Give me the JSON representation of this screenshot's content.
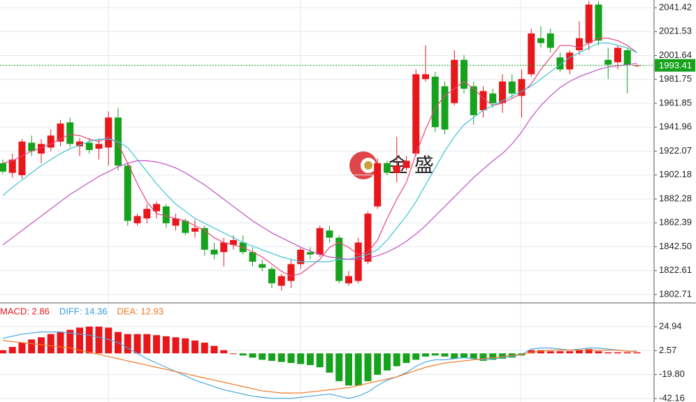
{
  "chart_data": [
    {
      "type": "candlestick",
      "watermark": "金 盛",
      "up_color": "#e8171b",
      "down_color": "#16a21c",
      "open": [
        1912,
        1904,
        1902,
        1929,
        1920,
        1925,
        1930,
        1946,
        1926,
        1929,
        1924,
        1925,
        1950,
        1910,
        1862,
        1866,
        1872,
        1876,
        1860,
        1864,
        1855,
        1858,
        1840,
        1838,
        1844,
        1846,
        1838,
        1828,
        1824,
        1810,
        1814,
        1828,
        1838,
        1836,
        1856,
        1850,
        1812,
        1814,
        1830,
        1876,
        1912,
        1904,
        1908,
        1920,
        1982,
        1984,
        1976,
        1962,
        1998,
        1976,
        1956,
        1970,
        1962,
        1980,
        1968,
        1986,
        2016,
        2020,
        2000,
        1990,
        2006,
        2012,
        2044,
        1998,
        1996,
        2006,
        1993
      ],
      "high": [
        1915,
        1920,
        1932,
        1935,
        1932,
        1940,
        1948,
        1950,
        1933,
        1933,
        1932,
        1955,
        1958,
        1912,
        1870,
        1878,
        1880,
        1878,
        1870,
        1866,
        1865,
        1860,
        1846,
        1850,
        1852,
        1852,
        1842,
        1832,
        1826,
        1820,
        1832,
        1842,
        1842,
        1860,
        1860,
        1852,
        1822,
        1850,
        1872,
        1916,
        1914,
        1934,
        1918,
        1990,
        2010,
        1988,
        1980,
        2006,
        2002,
        1980,
        1976,
        1974,
        1986,
        1986,
        1990,
        2024,
        2026,
        2024,
        2004,
        2006,
        2030,
        2047,
        2047,
        2008,
        2010,
        2008,
        1994
      ],
      "low": [
        1903,
        1900,
        1899,
        1918,
        1912,
        1922,
        1926,
        1925,
        1918,
        1920,
        1915,
        1910,
        1906,
        1860,
        1860,
        1862,
        1866,
        1858,
        1856,
        1852,
        1850,
        1835,
        1832,
        1826,
        1840,
        1836,
        1826,
        1822,
        1808,
        1806,
        1808,
        1824,
        1832,
        1834,
        1846,
        1812,
        1810,
        1812,
        1828,
        1874,
        1902,
        1896,
        1906,
        1918,
        1980,
        1938,
        1936,
        1960,
        1970,
        1944,
        1950,
        1958,
        1954,
        1966,
        1950,
        1984,
        2008,
        2004,
        1988,
        1986,
        2002,
        2006,
        2010,
        1982,
        1990,
        1970,
        1992
      ],
      "close": [
        1905,
        1915,
        1930,
        1922,
        1928,
        1935,
        1945,
        1928,
        1930,
        1923,
        1928,
        1950,
        1910,
        1864,
        1868,
        1874,
        1878,
        1862,
        1866,
        1854,
        1858,
        1840,
        1836,
        1846,
        1848,
        1838,
        1830,
        1825,
        1812,
        1818,
        1828,
        1840,
        1836,
        1858,
        1850,
        1814,
        1818,
        1846,
        1870,
        1912,
        1904,
        1910,
        1914,
        1986,
        1986,
        1942,
        1940,
        1998,
        1974,
        1952,
        1972,
        1962,
        1980,
        1970,
        1982,
        2020,
        2012,
        2008,
        1990,
        2004,
        2016,
        2044,
        2014,
        1994,
        2008,
        1994,
        1993.41
      ],
      "series": [
        {
          "color": "#e8457a",
          "values": [
            1912,
            1914,
            1918,
            1922,
            1925,
            1928,
            1932,
            1936,
            1935,
            1932,
            1930,
            1934,
            1928,
            1912,
            1895,
            1880,
            1870,
            1868,
            1866,
            1864,
            1860,
            1856,
            1850,
            1846,
            1844,
            1842,
            1838,
            1834,
            1828,
            1822,
            1818,
            1820,
            1826,
            1832,
            1842,
            1846,
            1842,
            1836,
            1838,
            1848,
            1866,
            1882,
            1896,
            1920,
            1940,
            1958,
            1968,
            1974,
            1980,
            1974,
            1966,
            1960,
            1962,
            1966,
            1970,
            1978,
            1990,
            2000,
            2010,
            2010,
            2008,
            2012,
            2016,
            2016,
            2014,
            2010,
            2004
          ]
        },
        {
          "color": "#3fc3d6",
          "values": [
            1885,
            1892,
            1898,
            1904,
            1910,
            1915,
            1920,
            1924,
            1927,
            1930,
            1932,
            1932,
            1930,
            1925,
            1915,
            1905,
            1895,
            1886,
            1878,
            1872,
            1866,
            1862,
            1858,
            1854,
            1850,
            1846,
            1843,
            1840,
            1837,
            1834,
            1832,
            1830,
            1830,
            1830,
            1830,
            1832,
            1832,
            1834,
            1836,
            1840,
            1848,
            1858,
            1868,
            1880,
            1894,
            1908,
            1922,
            1934,
            1944,
            1950,
            1956,
            1960,
            1964,
            1968,
            1972,
            1976,
            1982,
            1988,
            1994,
            2000,
            2004,
            2008,
            2012,
            2012,
            2010,
            2008,
            2004
          ]
        },
        {
          "color": "#c04fc4",
          "values": [
            1844,
            1850,
            1856,
            1862,
            1868,
            1874,
            1880,
            1886,
            1891,
            1896,
            1901,
            1905,
            1909,
            1912,
            1914,
            1914,
            1913,
            1911,
            1908,
            1904,
            1899,
            1894,
            1888,
            1882,
            1876,
            1870,
            1864,
            1859,
            1854,
            1850,
            1846,
            1842,
            1839,
            1836,
            1834,
            1833,
            1832,
            1832,
            1833,
            1835,
            1838,
            1842,
            1847,
            1853,
            1860,
            1868,
            1876,
            1884,
            1892,
            1900,
            1907,
            1914,
            1920,
            1928,
            1938,
            1950,
            1960,
            1968,
            1975,
            1980,
            1984,
            1987,
            1990,
            1992,
            1993,
            1994,
            1995
          ]
        }
      ],
      "last_price": 1993.41,
      "last_price_color": "#16a21c",
      "ylim": [
        1796.9,
        2047.8
      ],
      "yticks": [
        2041.42,
        2021.53,
        2001.64,
        1981.75,
        1961.85,
        1941.96,
        1922.07,
        1902.18,
        1882.28,
        1862.39,
        {
          "value": 1842.5,
          "label": "1842.50"
        },
        1822.61,
        1802.71
      ],
      "grid": true
    },
    {
      "type": "macd",
      "legend": [
        {
          "text": "MACD: 2.86",
          "color": "#e8171b"
        },
        {
          "text": "DIFF: 14.36",
          "color": "#3a9be0"
        },
        {
          "text": "DEA: 12.93",
          "color": "#f07822"
        }
      ],
      "up_color": "#e8171b",
      "down_color": "#16a21c",
      "values": [
        3,
        6,
        10,
        13,
        15,
        18,
        20,
        22,
        24,
        25,
        25,
        24,
        20,
        18,
        18,
        18,
        17,
        16,
        15,
        14,
        12,
        10,
        7,
        3,
        0,
        -2,
        -4,
        -6,
        -7,
        -8,
        -9,
        -10,
        -11,
        -13,
        -18,
        -26,
        -30,
        -30,
        -26,
        -20,
        -16,
        -12,
        -9,
        -6,
        -3,
        -2,
        -3,
        -5,
        -4,
        -5,
        -7,
        -6,
        -5,
        -4,
        -2,
        3,
        3,
        2,
        2,
        2,
        3,
        4,
        2,
        1,
        1,
        1,
        1
      ],
      "series": [
        {
          "color": "#4aa8e0",
          "values": [
            14,
            16,
            18,
            19,
            20,
            20,
            20,
            19,
            18,
            17,
            15,
            13,
            10,
            5,
            0,
            -5,
            -9,
            -13,
            -17,
            -21,
            -25,
            -28,
            -31,
            -34,
            -36,
            -38,
            -40,
            -41,
            -42,
            -42,
            -42,
            -41,
            -40,
            -39,
            -38,
            -40,
            -42,
            -40,
            -36,
            -30,
            -25,
            -22,
            -18,
            -12,
            -8,
            -6,
            -6,
            -5,
            -4,
            -5,
            -6,
            -5,
            -4,
            -3,
            -1,
            4,
            5,
            5,
            4,
            3,
            4,
            5,
            5,
            4,
            3,
            2,
            2
          ]
        },
        {
          "color": "#f07822",
          "values": [
            12,
            11,
            10,
            9,
            8,
            7,
            6,
            5,
            3,
            1,
            -1,
            -3,
            -5,
            -7,
            -9,
            -11,
            -13,
            -15,
            -17,
            -19,
            -21,
            -23,
            -25,
            -27,
            -29,
            -31,
            -33,
            -35,
            -36,
            -37,
            -37,
            -37,
            -36,
            -35,
            -34,
            -33,
            -32,
            -30,
            -28,
            -26,
            -24,
            -22,
            -19,
            -16,
            -13,
            -11,
            -9,
            -8,
            -7,
            -6,
            -5,
            -4,
            -3,
            -2,
            -1,
            1,
            2,
            3,
            3,
            3,
            3,
            3,
            3,
            3,
            3,
            2,
            2
          ]
        }
      ],
      "ylim": [
        -45.4,
        45.8
      ],
      "yticks": [
        24.94,
        2.57,
        {
          "value": -19.8,
          "label": "-19.80"
        },
        -42.16
      ]
    }
  ]
}
